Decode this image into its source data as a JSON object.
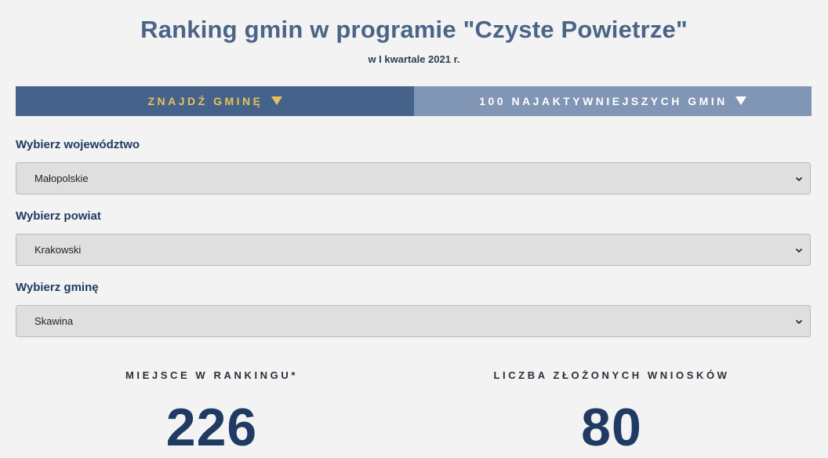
{
  "header": {
    "title": "Ranking gmin w programie \"Czyste Powietrze\"",
    "subtitle": "w I kwartale 2021 r."
  },
  "tabs": [
    {
      "label": "ZNAJDŹ GMINĘ",
      "active": true,
      "icon": "triangle-down-icon"
    },
    {
      "label": "100 NAJAKTYWNIEJSZYCH GMIN",
      "active": false,
      "icon": "triangle-down-icon"
    }
  ],
  "filters": {
    "voivodeship": {
      "label": "Wybierz województwo",
      "value": "Małopolskie"
    },
    "county": {
      "label": "Wybierz powiat",
      "value": "Krakowski"
    },
    "commune": {
      "label": "Wybierz gminę",
      "value": "Skawina"
    }
  },
  "stats": {
    "rank": {
      "label": "MIEJSCE W RANKINGU*",
      "value": "226"
    },
    "applications": {
      "label": "LICZBA ZŁOŻONYCH WNIOSKÓW",
      "value": "80"
    }
  },
  "colors": {
    "title": "#4a6587",
    "active_tab_bg": "#45628a",
    "active_tab_text": "#e8c15a",
    "inactive_tab_bg": "#8195b4",
    "stat_value": "#1f3a63"
  }
}
